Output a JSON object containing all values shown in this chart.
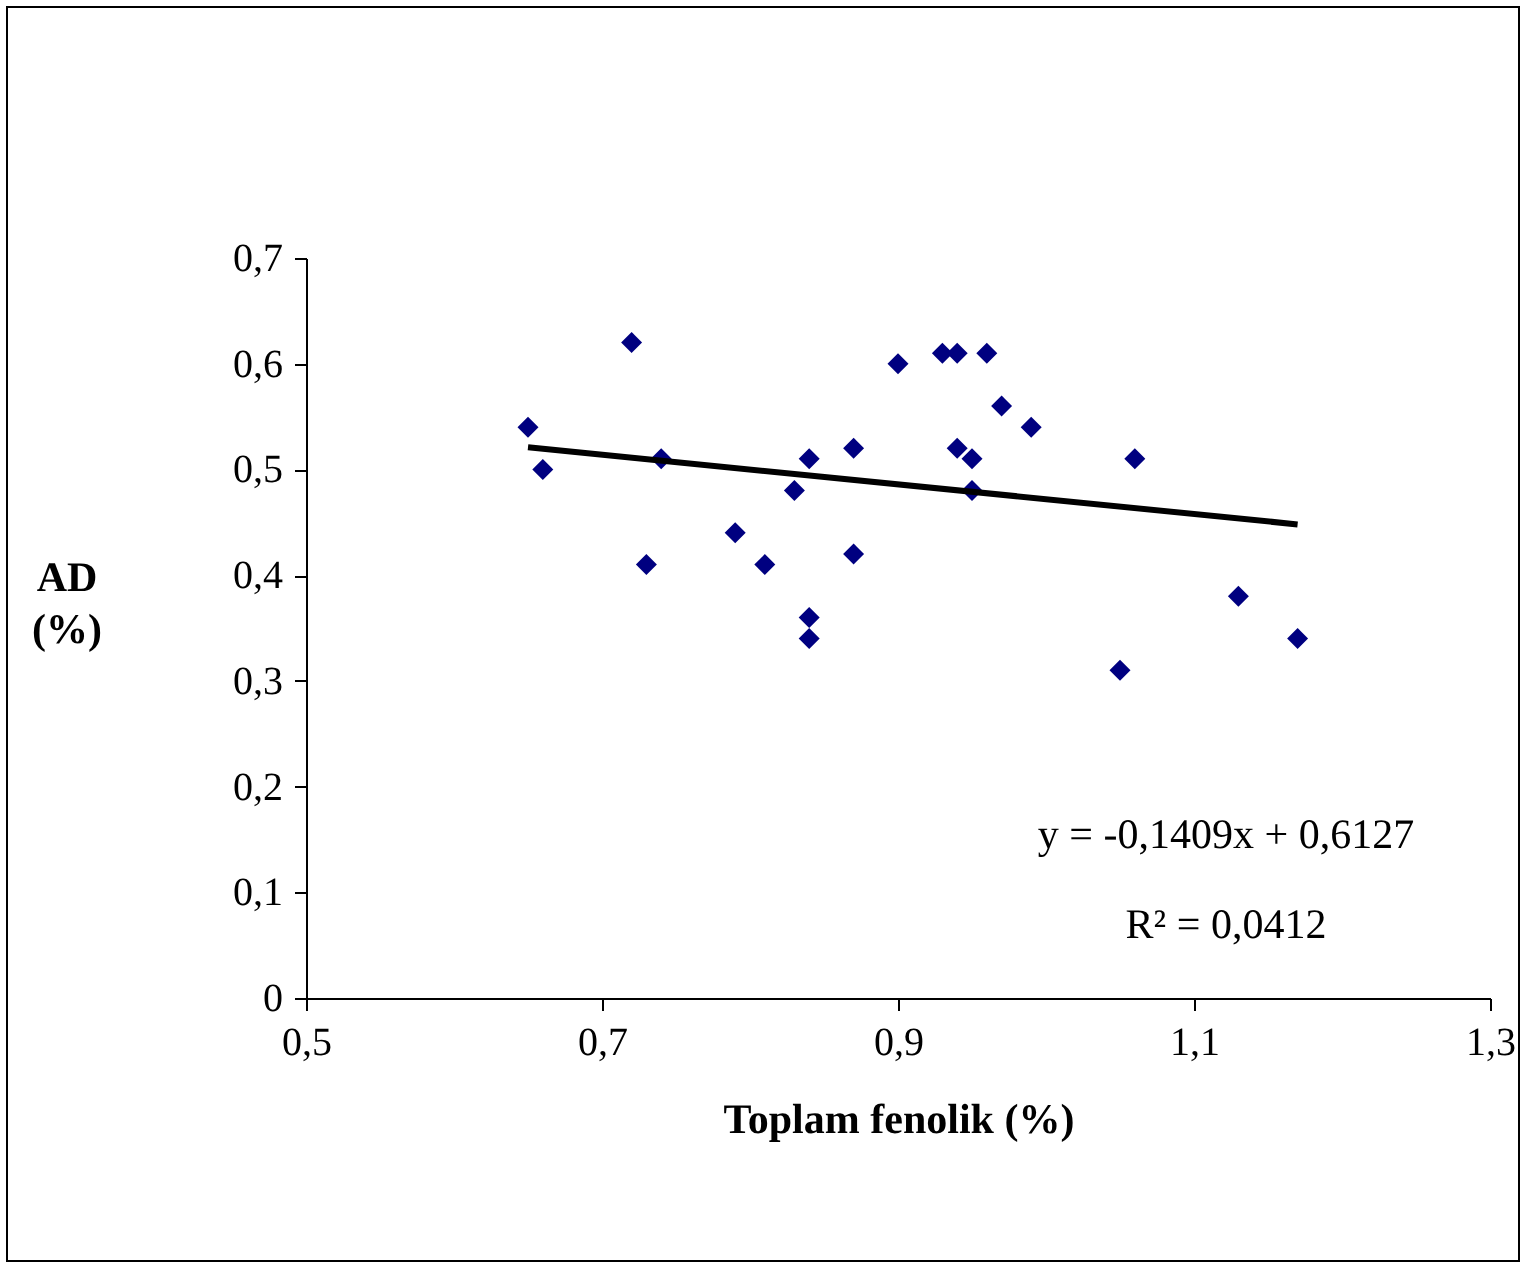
{
  "chart_data": {
    "type": "scatter",
    "xlabel": "Toplam fenolik (%)",
    "ylabel": "AD\n(%)",
    "xlim": [
      0.5,
      1.3
    ],
    "ylim": [
      0,
      0.7
    ],
    "xticks": [
      {
        "value": 0.5,
        "label": "0,5"
      },
      {
        "value": 0.7,
        "label": "0,7"
      },
      {
        "value": 0.9,
        "label": "0,9"
      },
      {
        "value": 1.1,
        "label": "1,1"
      },
      {
        "value": 1.3,
        "label": "1,3"
      }
    ],
    "yticks": [
      0,
      {
        "value": 0.1,
        "label": "0,1"
      },
      {
        "value": 0.2,
        "label": "0,2"
      },
      {
        "value": 0.3,
        "label": "0,3"
      },
      {
        "value": 0.4,
        "label": "0,4"
      },
      {
        "value": 0.5,
        "label": "0,5"
      },
      {
        "value": 0.6,
        "label": "0,6"
      },
      {
        "value": 0.7,
        "label": "0,7"
      }
    ],
    "grid": false,
    "marker": "diamond",
    "series": [
      {
        "color": "#000080",
        "x": [
          0.65,
          0.66,
          0.72,
          0.73,
          0.74,
          0.79,
          0.81,
          0.83,
          0.84,
          0.84,
          0.84,
          0.87,
          0.87,
          0.9,
          0.93,
          0.94,
          0.96,
          0.94,
          0.95,
          0.95,
          0.97,
          0.99,
          1.05,
          1.06,
          1.13,
          1.17
        ],
        "values": [
          0.54,
          0.5,
          0.62,
          0.41,
          0.51,
          0.44,
          0.41,
          0.48,
          0.51,
          0.36,
          0.34,
          0.52,
          0.42,
          0.6,
          0.61,
          0.61,
          0.61,
          0.52,
          0.51,
          0.48,
          0.56,
          0.54,
          0.31,
          0.51,
          0.38,
          0.34
        ]
      },
      {
        "type": "line",
        "color": "#000000",
        "marker": "none",
        "x": [
          0.65,
          1.17
        ],
        "values": [
          0.521,
          0.448
        ]
      }
    ],
    "annotations": [
      "y = -0,1409x + 0,6127",
      "R² = 0,0412"
    ]
  }
}
